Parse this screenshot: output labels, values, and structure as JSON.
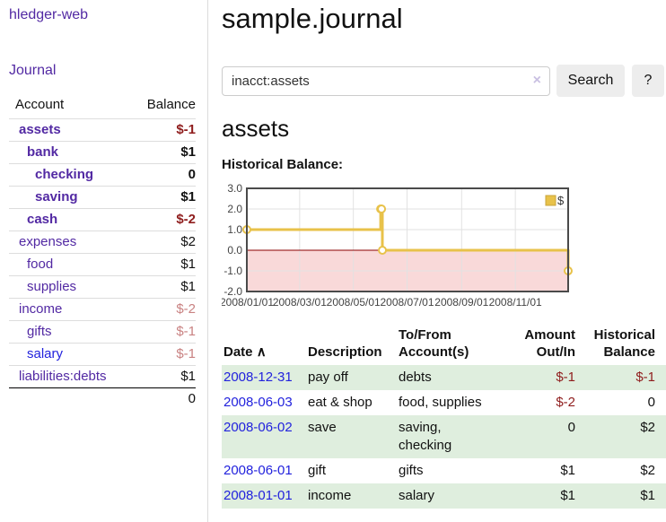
{
  "sidebar": {
    "app_title": "hledger-web",
    "journal_label": "Journal",
    "accounts_table": {
      "account_header": "Account",
      "balance_header": "Balance",
      "rows": [
        {
          "label": "assets",
          "indent": 1,
          "bold": true,
          "link_color": "purple",
          "balance": "$-1"
        },
        {
          "label": "bank",
          "indent": 2,
          "bold": true,
          "link_color": "purple",
          "balance": "$1"
        },
        {
          "label": "checking",
          "indent": 3,
          "bold": true,
          "link_color": "purple",
          "balance": "0"
        },
        {
          "label": "saving",
          "indent": 3,
          "bold": true,
          "link_color": "purple",
          "balance": "$1"
        },
        {
          "label": "cash",
          "indent": 2,
          "bold": true,
          "link_color": "purple",
          "balance": "$-2"
        },
        {
          "label": "expenses",
          "indent": 1,
          "bold": false,
          "link_color": "purple",
          "balance": "$2"
        },
        {
          "label": "food",
          "indent": 2,
          "bold": false,
          "link_color": "purple",
          "balance": "$1"
        },
        {
          "label": "supplies",
          "indent": 2,
          "bold": false,
          "link_color": "purple",
          "balance": "$1"
        },
        {
          "label": "income",
          "indent": 1,
          "bold": false,
          "link_color": "purple",
          "balance": "$-2"
        },
        {
          "label": "gifts",
          "indent": 2,
          "bold": false,
          "link_color": "purple",
          "balance": "$-1"
        },
        {
          "label": "salary",
          "indent": 2,
          "bold": false,
          "link_color": "blue",
          "balance": "$-1"
        },
        {
          "label": "liabilities:debts",
          "indent": 1,
          "bold": false,
          "link_color": "purple",
          "balance": "$1"
        }
      ],
      "total": "0"
    }
  },
  "main": {
    "title": "sample.journal",
    "search": {
      "value": "inacct:assets",
      "clear_icon": "×",
      "search_button": "Search",
      "help_button": "?"
    },
    "account_heading": "assets",
    "chart_heading": "Historical Balance:"
  },
  "chart_data": {
    "type": "line",
    "subtype": "step",
    "title": "Historical Balance:",
    "x_start": "2008-01-01",
    "x_end": "2008-12-31",
    "ylim": [
      -2,
      3
    ],
    "yticks": [
      3.0,
      2.0,
      1.0,
      0.0,
      -1.0,
      -2.0
    ],
    "xticks": [
      "2008/01/01",
      "2008/03/01",
      "2008/05/01",
      "2008/07/01",
      "2008/09/01",
      "2008/11/01"
    ],
    "series": [
      {
        "name": "$",
        "color": "#e8c24a",
        "points": [
          [
            "2008-01-01",
            1
          ],
          [
            "2008-06-01",
            2
          ],
          [
            "2008-06-02",
            2
          ],
          [
            "2008-06-03",
            0
          ],
          [
            "2008-12-31",
            -1
          ]
        ]
      }
    ],
    "legend_position": "top-right",
    "grid": true,
    "grid_color": "#e2e2e2",
    "negative_region_color": "#f9d9d9",
    "zero_line_color": "#8b0000",
    "border_color": "#4a4a4a",
    "legend_box_border": "#c9a43c",
    "tick_label_color": "#444"
  },
  "register_table": {
    "headers": {
      "date": "Date",
      "sort_indicator": "∧",
      "description": "Description",
      "accounts": "To/From Account(s)",
      "amount": "Amount Out/In",
      "balance": "Historical Balance"
    },
    "rows": [
      {
        "date": "2008-12-31",
        "description": "pay off",
        "accounts": "debts",
        "amount": "$-1",
        "balance": "$-1"
      },
      {
        "date": "2008-06-03",
        "description": "eat & shop",
        "accounts": "food, supplies",
        "amount": "$-2",
        "balance": "0"
      },
      {
        "date": "2008-06-02",
        "description": "save",
        "accounts": "saving, checking",
        "amount": "0",
        "balance": "$2"
      },
      {
        "date": "2008-06-01",
        "description": "gift",
        "accounts": "gifts",
        "amount": "$1",
        "balance": "$2"
      },
      {
        "date": "2008-01-01",
        "description": "income",
        "accounts": "salary",
        "amount": "$1",
        "balance": "$1"
      }
    ]
  }
}
